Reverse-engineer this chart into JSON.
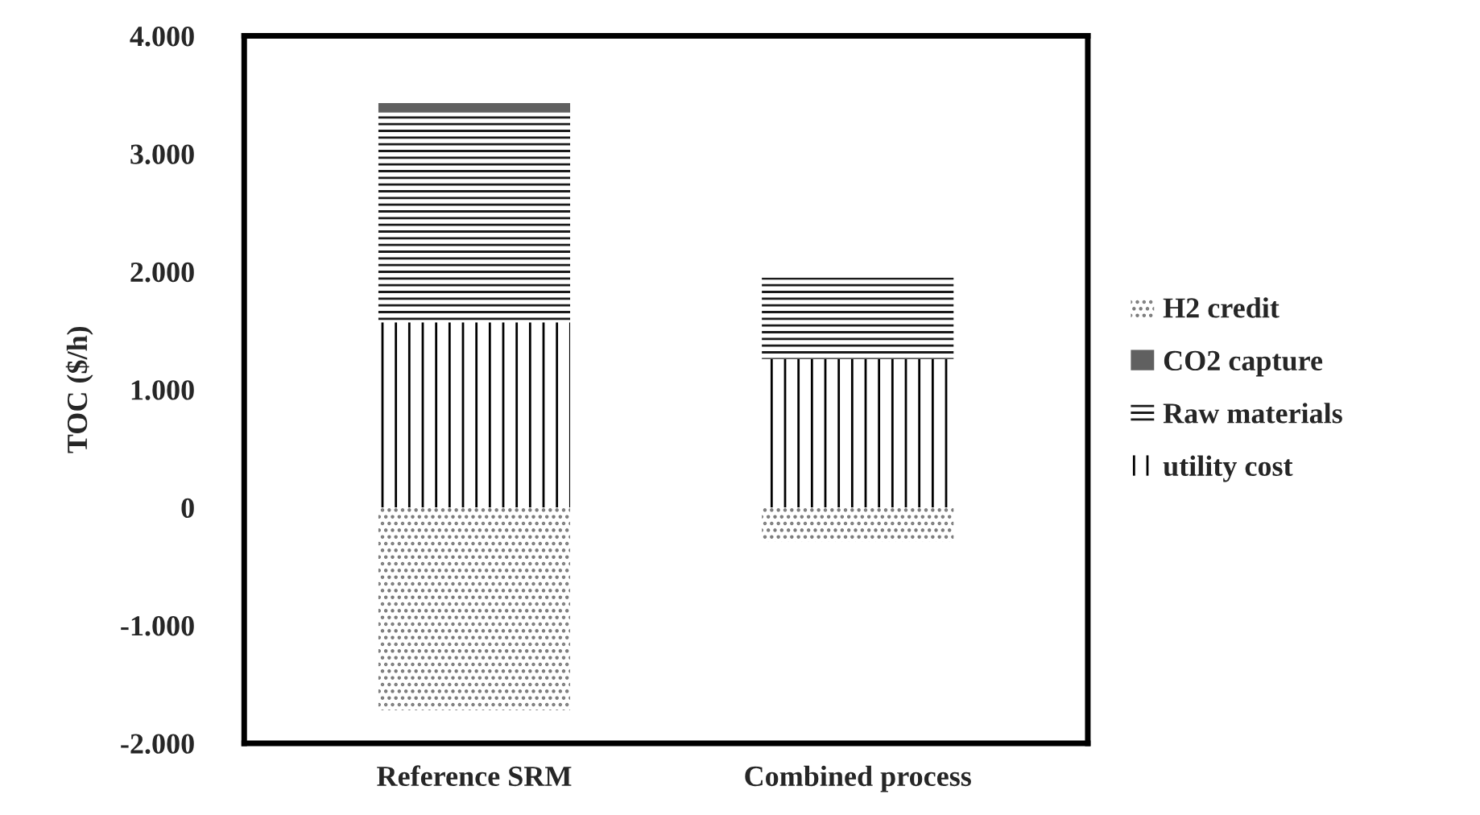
{
  "chart_data": {
    "type": "bar",
    "stacked": true,
    "ylabel": "TOC ($/h)",
    "categories": [
      "Reference SRM",
      "Combined process"
    ],
    "series": [
      {
        "name": "utility cost",
        "color": "#000000",
        "values": [
          1570,
          1260
        ]
      },
      {
        "name": "Raw materials",
        "color": "#1a1a1a",
        "values": [
          1780,
          690
        ]
      },
      {
        "name": "CO2 capture",
        "color": "#606060",
        "values": [
          80,
          0
        ]
      },
      {
        "name": "H2 credit",
        "color": "#7a7a7a",
        "values": [
          -1720,
          -290
        ]
      }
    ],
    "ylim": [
      -2000,
      4000
    ],
    "yticks": [
      {
        "value": -2000,
        "label": "-2.000"
      },
      {
        "value": -1000,
        "label": "-1.000"
      },
      0,
      {
        "value": 1000,
        "label": "1.000"
      },
      {
        "value": 2000,
        "label": "2.000"
      },
      {
        "value": 3000,
        "label": "3.000"
      },
      {
        "value": 4000,
        "label": "4.000"
      }
    ],
    "grid": false,
    "legend": "right"
  }
}
